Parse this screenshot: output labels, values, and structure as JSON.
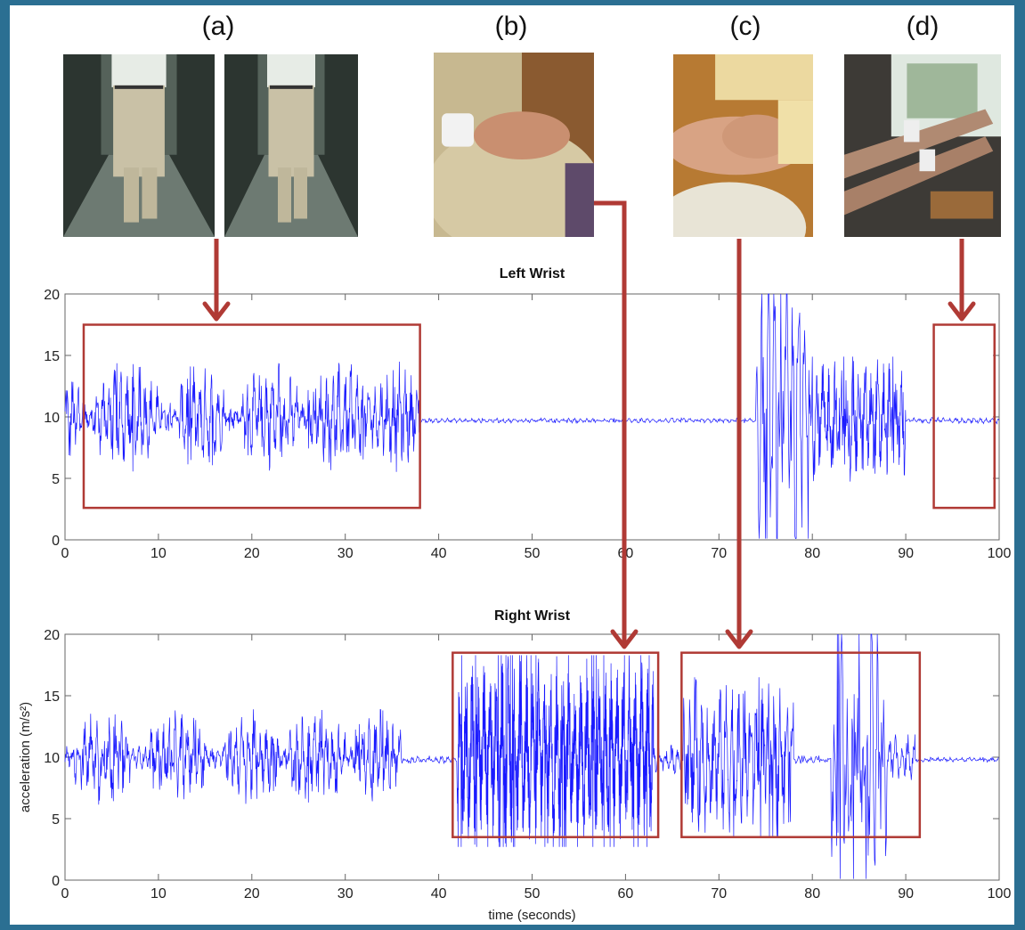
{
  "panels": [
    {
      "label": "(a)",
      "scene": "two photos of a person walking down a corridor"
    },
    {
      "label": "(b)",
      "scene": "hand resting on knee while seated"
    },
    {
      "label": "(c)",
      "scene": "arm held by another person's hands"
    },
    {
      "label": "(d)",
      "scene": "two arms raised forward near a window"
    }
  ],
  "chart_data": [
    {
      "type": "line",
      "title": "Left Wrist",
      "xlabel": "",
      "ylabel": "",
      "xlim": [
        0,
        100
      ],
      "ylim": [
        0,
        20
      ],
      "xticks": [
        0,
        10,
        20,
        30,
        40,
        50,
        60,
        70,
        80,
        90,
        100
      ],
      "yticks": [
        0,
        5,
        10,
        15,
        20
      ],
      "series_color": "#1a1aff",
      "segments": [
        {
          "x0": 0,
          "x1": 1.5,
          "center": 9.8,
          "amp": 3.0,
          "density": 0.8
        },
        {
          "x0": 1.5,
          "x1": 38,
          "center": 10.0,
          "amp": 3.5,
          "density": 1.0,
          "bursts": [
            [
              3,
              10
            ],
            [
              12,
              17
            ],
            [
              19,
              25
            ],
            [
              26,
              33
            ],
            [
              33,
              38
            ]
          ]
        },
        {
          "x0": 38,
          "x1": 74,
          "center": 9.7,
          "amp": 0.15,
          "density": 0.6
        },
        {
          "x0": 74,
          "x1": 80,
          "center": 10.0,
          "amp": 9.5,
          "density": 0.6
        },
        {
          "x0": 80,
          "x1": 90,
          "center": 9.7,
          "amp": 4.0,
          "density": 1.2
        },
        {
          "x0": 90,
          "x1": 100,
          "center": 9.7,
          "amp": 0.2,
          "density": 0.6
        }
      ],
      "highlight_boxes": [
        {
          "x0": 2,
          "x1": 38,
          "y0": 2.6,
          "y1": 17.5
        },
        {
          "x0": 93,
          "x1": 99.5,
          "y0": 2.6,
          "y1": 17.5
        }
      ]
    },
    {
      "type": "line",
      "title": "Right Wrist",
      "xlabel": "time (seconds)",
      "ylabel": "acceleration (m/s²)",
      "xlim": [
        0,
        100
      ],
      "ylim": [
        0,
        20
      ],
      "xticks": [
        0,
        10,
        20,
        30,
        40,
        50,
        60,
        70,
        80,
        90,
        100
      ],
      "yticks": [
        0,
        5,
        10,
        15,
        20
      ],
      "series_color": "#1a1aff",
      "segments": [
        {
          "x0": 0,
          "x1": 36,
          "center": 10.0,
          "amp": 3.0,
          "density": 1.0,
          "bursts": [
            [
              1,
              7
            ],
            [
              9,
              15
            ],
            [
              17,
              23
            ],
            [
              24,
              30
            ],
            [
              31,
              36
            ]
          ]
        },
        {
          "x0": 36,
          "x1": 42,
          "center": 9.8,
          "amp": 0.25,
          "density": 0.6
        },
        {
          "x0": 42,
          "x1": 63,
          "center": 10.5,
          "amp": 6.0,
          "density": 2.4
        },
        {
          "x0": 63,
          "x1": 66,
          "center": 9.8,
          "amp": 1.0,
          "density": 0.8
        },
        {
          "x0": 66,
          "x1": 78,
          "center": 10.0,
          "amp": 5.0,
          "density": 1.0
        },
        {
          "x0": 78,
          "x1": 82,
          "center": 9.8,
          "amp": 0.25,
          "density": 0.6
        },
        {
          "x0": 82,
          "x1": 88,
          "center": 10.0,
          "amp": 9.8,
          "density": 0.6
        },
        {
          "x0": 88,
          "x1": 91,
          "center": 9.9,
          "amp": 1.5,
          "density": 0.8
        },
        {
          "x0": 91,
          "x1": 100,
          "center": 9.8,
          "amp": 0.15,
          "density": 0.6
        }
      ],
      "highlight_boxes": [
        {
          "x0": 41.5,
          "x1": 63.5,
          "y0": 3.5,
          "y1": 18.5
        },
        {
          "x0": 66,
          "x1": 91.5,
          "y0": 3.5,
          "y1": 18.5
        }
      ]
    }
  ],
  "arrow_color": "#b03a35",
  "box_color": "#b03a35"
}
